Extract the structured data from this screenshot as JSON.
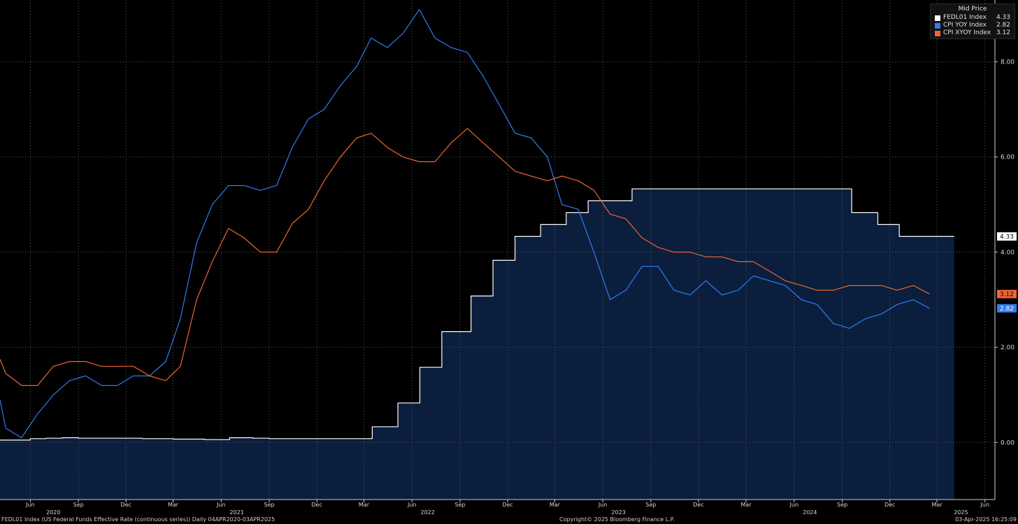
{
  "legend": {
    "header": "Mid Price",
    "items": [
      {
        "name": "FEDL01 Index",
        "value": "4.33",
        "color": "#ffffff"
      },
      {
        "name": "CPI YOY Index",
        "value": "2.82",
        "color": "#2f7df0"
      },
      {
        "name": "CPI XYOY Index",
        "value": "3.12",
        "color": "#f06432"
      }
    ]
  },
  "footer": {
    "left": "FEDL01 Index (US Federal Funds Effective Rate (continuous series))  Daily 04APR2020-03APR2025",
    "center": "Copyright© 2025 Bloomberg Finance L.P.",
    "right": "03-Apr-2025 16:25:09"
  },
  "chart_data": {
    "type": "line",
    "title": "",
    "xlabel": "",
    "ylabel": "",
    "x_range": [
      "2020-04-04",
      "2025-06-20"
    ],
    "ylim": [
      -1.2,
      9.3
    ],
    "yticks": [
      "0.00",
      "2.00",
      "4.00",
      "6.00",
      "8.00"
    ],
    "grid": true,
    "x_month_ticks": [
      {
        "label": "Jun",
        "date": "2020-06-01"
      },
      {
        "label": "Sep",
        "date": "2020-09-01"
      },
      {
        "label": "Dec",
        "date": "2020-12-01"
      },
      {
        "label": "Mar",
        "date": "2021-03-01"
      },
      {
        "label": "Jun",
        "date": "2021-06-01"
      },
      {
        "label": "Sep",
        "date": "2021-09-01"
      },
      {
        "label": "Dec",
        "date": "2021-12-01"
      },
      {
        "label": "Mar",
        "date": "2022-03-01"
      },
      {
        "label": "Jun",
        "date": "2022-06-01"
      },
      {
        "label": "Sep",
        "date": "2022-09-01"
      },
      {
        "label": "Dec",
        "date": "2022-12-01"
      },
      {
        "label": "Mar",
        "date": "2023-03-01"
      },
      {
        "label": "Jun",
        "date": "2023-06-01"
      },
      {
        "label": "Sep",
        "date": "2023-09-01"
      },
      {
        "label": "Dec",
        "date": "2023-12-01"
      },
      {
        "label": "Mar",
        "date": "2024-03-01"
      },
      {
        "label": "Jun",
        "date": "2024-06-01"
      },
      {
        "label": "Sep",
        "date": "2024-09-01"
      },
      {
        "label": "Dec",
        "date": "2024-12-01"
      },
      {
        "label": "Mar",
        "date": "2025-03-01"
      },
      {
        "label": "Jun",
        "date": "2025-06-01"
      }
    ],
    "x_year_labels": [
      {
        "label": "2020",
        "date": "2020-07-15"
      },
      {
        "label": "2021",
        "date": "2021-07-01"
      },
      {
        "label": "2022",
        "date": "2022-07-01"
      },
      {
        "label": "2023",
        "date": "2023-07-01"
      },
      {
        "label": "2024",
        "date": "2024-07-01"
      },
      {
        "label": "2025",
        "date": "2025-04-16"
      }
    ],
    "series": [
      {
        "name": "FEDL01 Index",
        "color": "#ffffff",
        "fill": "#0b1e3d",
        "step": true,
        "points": [
          [
            "2020-04-04",
            0.05
          ],
          [
            "2020-05-01",
            0.05
          ],
          [
            "2020-06-01",
            0.08
          ],
          [
            "2020-07-01",
            0.09
          ],
          [
            "2020-08-01",
            0.1
          ],
          [
            "2020-09-01",
            0.09
          ],
          [
            "2020-10-01",
            0.09
          ],
          [
            "2020-12-01",
            0.09
          ],
          [
            "2021-01-01",
            0.08
          ],
          [
            "2021-03-01",
            0.07
          ],
          [
            "2021-05-01",
            0.06
          ],
          [
            "2021-06-17",
            0.1
          ],
          [
            "2021-08-01",
            0.09
          ],
          [
            "2021-09-01",
            0.08
          ],
          [
            "2022-03-17",
            0.33
          ],
          [
            "2022-05-05",
            0.83
          ],
          [
            "2022-06-16",
            1.58
          ],
          [
            "2022-07-28",
            2.33
          ],
          [
            "2022-09-22",
            3.08
          ],
          [
            "2022-11-03",
            3.83
          ],
          [
            "2022-12-15",
            4.33
          ],
          [
            "2023-02-02",
            4.58
          ],
          [
            "2023-03-23",
            4.83
          ],
          [
            "2023-05-04",
            5.08
          ],
          [
            "2023-07-27",
            5.33
          ],
          [
            "2024-09-19",
            4.83
          ],
          [
            "2024-11-08",
            4.58
          ],
          [
            "2024-12-19",
            4.33
          ],
          [
            "2025-04-03",
            4.33
          ]
        ]
      },
      {
        "name": "CPI YOY Index",
        "color": "#2f7df0",
        "step": false,
        "points": [
          [
            "2020-04-04",
            0.9
          ],
          [
            "2020-04-15",
            0.3
          ],
          [
            "2020-05-15",
            0.1
          ],
          [
            "2020-06-15",
            0.6
          ],
          [
            "2020-07-15",
            1.0
          ],
          [
            "2020-08-15",
            1.3
          ],
          [
            "2020-09-15",
            1.4
          ],
          [
            "2020-10-15",
            1.2
          ],
          [
            "2020-11-15",
            1.2
          ],
          [
            "2020-12-15",
            1.4
          ],
          [
            "2021-01-15",
            1.4
          ],
          [
            "2021-02-15",
            1.7
          ],
          [
            "2021-03-15",
            2.6
          ],
          [
            "2021-04-15",
            4.2
          ],
          [
            "2021-05-15",
            5.0
          ],
          [
            "2021-06-15",
            5.4
          ],
          [
            "2021-07-15",
            5.4
          ],
          [
            "2021-08-15",
            5.3
          ],
          [
            "2021-09-15",
            5.4
          ],
          [
            "2021-10-15",
            6.2
          ],
          [
            "2021-11-15",
            6.8
          ],
          [
            "2021-12-15",
            7.0
          ],
          [
            "2022-01-15",
            7.5
          ],
          [
            "2022-02-15",
            7.9
          ],
          [
            "2022-03-15",
            8.5
          ],
          [
            "2022-04-15",
            8.3
          ],
          [
            "2022-05-15",
            8.6
          ],
          [
            "2022-06-15",
            9.1
          ],
          [
            "2022-07-15",
            8.5
          ],
          [
            "2022-08-15",
            8.3
          ],
          [
            "2022-09-15",
            8.2
          ],
          [
            "2022-10-15",
            7.7
          ],
          [
            "2022-11-15",
            7.1
          ],
          [
            "2022-12-15",
            6.5
          ],
          [
            "2023-01-15",
            6.4
          ],
          [
            "2023-02-15",
            6.0
          ],
          [
            "2023-03-15",
            5.0
          ],
          [
            "2023-04-15",
            4.9
          ],
          [
            "2023-05-15",
            4.0
          ],
          [
            "2023-06-15",
            3.0
          ],
          [
            "2023-07-15",
            3.2
          ],
          [
            "2023-08-15",
            3.7
          ],
          [
            "2023-09-15",
            3.7
          ],
          [
            "2023-10-15",
            3.2
          ],
          [
            "2023-11-15",
            3.1
          ],
          [
            "2023-12-15",
            3.4
          ],
          [
            "2024-01-15",
            3.1
          ],
          [
            "2024-02-15",
            3.2
          ],
          [
            "2024-03-15",
            3.5
          ],
          [
            "2024-04-15",
            3.4
          ],
          [
            "2024-05-15",
            3.3
          ],
          [
            "2024-06-15",
            3.0
          ],
          [
            "2024-07-15",
            2.9
          ],
          [
            "2024-08-15",
            2.5
          ],
          [
            "2024-09-15",
            2.4
          ],
          [
            "2024-10-15",
            2.6
          ],
          [
            "2024-11-15",
            2.7
          ],
          [
            "2024-12-15",
            2.9
          ],
          [
            "2025-01-15",
            3.0
          ],
          [
            "2025-02-15",
            2.82
          ]
        ]
      },
      {
        "name": "CPI XYOY Index",
        "color": "#f06432",
        "step": false,
        "points": [
          [
            "2020-04-04",
            1.75
          ],
          [
            "2020-04-15",
            1.45
          ],
          [
            "2020-05-15",
            1.2
          ],
          [
            "2020-06-15",
            1.2
          ],
          [
            "2020-07-15",
            1.6
          ],
          [
            "2020-08-15",
            1.7
          ],
          [
            "2020-09-15",
            1.7
          ],
          [
            "2020-10-15",
            1.6
          ],
          [
            "2020-11-15",
            1.6
          ],
          [
            "2020-12-15",
            1.6
          ],
          [
            "2021-01-15",
            1.4
          ],
          [
            "2021-02-15",
            1.3
          ],
          [
            "2021-03-15",
            1.6
          ],
          [
            "2021-04-15",
            3.0
          ],
          [
            "2021-05-15",
            3.8
          ],
          [
            "2021-06-15",
            4.5
          ],
          [
            "2021-07-15",
            4.3
          ],
          [
            "2021-08-15",
            4.0
          ],
          [
            "2021-09-15",
            4.0
          ],
          [
            "2021-10-15",
            4.6
          ],
          [
            "2021-11-15",
            4.9
          ],
          [
            "2021-12-15",
            5.5
          ],
          [
            "2022-01-15",
            6.0
          ],
          [
            "2022-02-15",
            6.4
          ],
          [
            "2022-03-15",
            6.5
          ],
          [
            "2022-04-15",
            6.2
          ],
          [
            "2022-05-15",
            6.0
          ],
          [
            "2022-06-15",
            5.9
          ],
          [
            "2022-07-15",
            5.9
          ],
          [
            "2022-08-15",
            6.3
          ],
          [
            "2022-09-15",
            6.6
          ],
          [
            "2022-10-15",
            6.3
          ],
          [
            "2022-11-15",
            6.0
          ],
          [
            "2022-12-15",
            5.7
          ],
          [
            "2023-01-15",
            5.6
          ],
          [
            "2023-02-15",
            5.5
          ],
          [
            "2023-03-15",
            5.6
          ],
          [
            "2023-04-15",
            5.5
          ],
          [
            "2023-05-15",
            5.3
          ],
          [
            "2023-06-15",
            4.8
          ],
          [
            "2023-07-15",
            4.7
          ],
          [
            "2023-08-15",
            4.3
          ],
          [
            "2023-09-15",
            4.1
          ],
          [
            "2023-10-15",
            4.0
          ],
          [
            "2023-11-15",
            4.0
          ],
          [
            "2023-12-15",
            3.9
          ],
          [
            "2024-01-15",
            3.9
          ],
          [
            "2024-02-15",
            3.8
          ],
          [
            "2024-03-15",
            3.8
          ],
          [
            "2024-04-15",
            3.6
          ],
          [
            "2024-05-15",
            3.4
          ],
          [
            "2024-06-15",
            3.3
          ],
          [
            "2024-07-15",
            3.2
          ],
          [
            "2024-08-15",
            3.2
          ],
          [
            "2024-09-15",
            3.3
          ],
          [
            "2024-10-15",
            3.3
          ],
          [
            "2024-11-15",
            3.3
          ],
          [
            "2024-12-15",
            3.2
          ],
          [
            "2025-01-15",
            3.3
          ],
          [
            "2025-02-15",
            3.12
          ]
        ]
      }
    ],
    "last_value_tags": [
      {
        "series": "FEDL01 Index",
        "text": "4.33",
        "value": 4.33,
        "bg": "#ffffff",
        "fg": "#000000"
      },
      {
        "series": "CPI XYOY Index",
        "text": "3.12",
        "value": 3.12,
        "bg": "#f06432",
        "fg": "#000000"
      },
      {
        "series": "CPI YOY Index",
        "text": "2.82",
        "value": 2.82,
        "bg": "#2f7df0",
        "fg": "#ffffff"
      }
    ]
  }
}
